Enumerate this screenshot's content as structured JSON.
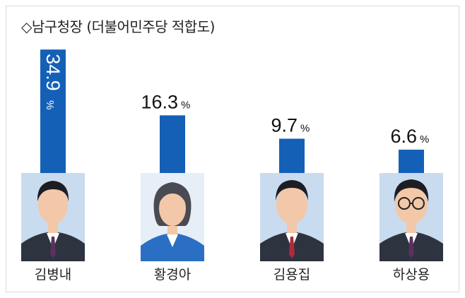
{
  "title": "◇남구청장 (더불어민주당 적합도)",
  "chart_data": {
    "type": "bar",
    "title": "◇남구청장 (더불어민주당 적합도)",
    "unit": "%",
    "categories": [
      "김병내",
      "황경아",
      "김용집",
      "하상용"
    ],
    "values": [
      34.9,
      16.3,
      9.7,
      6.6
    ],
    "value_labels": [
      "34.9",
      "16.3",
      "9.7",
      "6.6"
    ],
    "bar_color": "#1560b7",
    "grid": false,
    "legend": "none"
  },
  "colors": {
    "bar": "#1560b7",
    "text": "#111111"
  }
}
